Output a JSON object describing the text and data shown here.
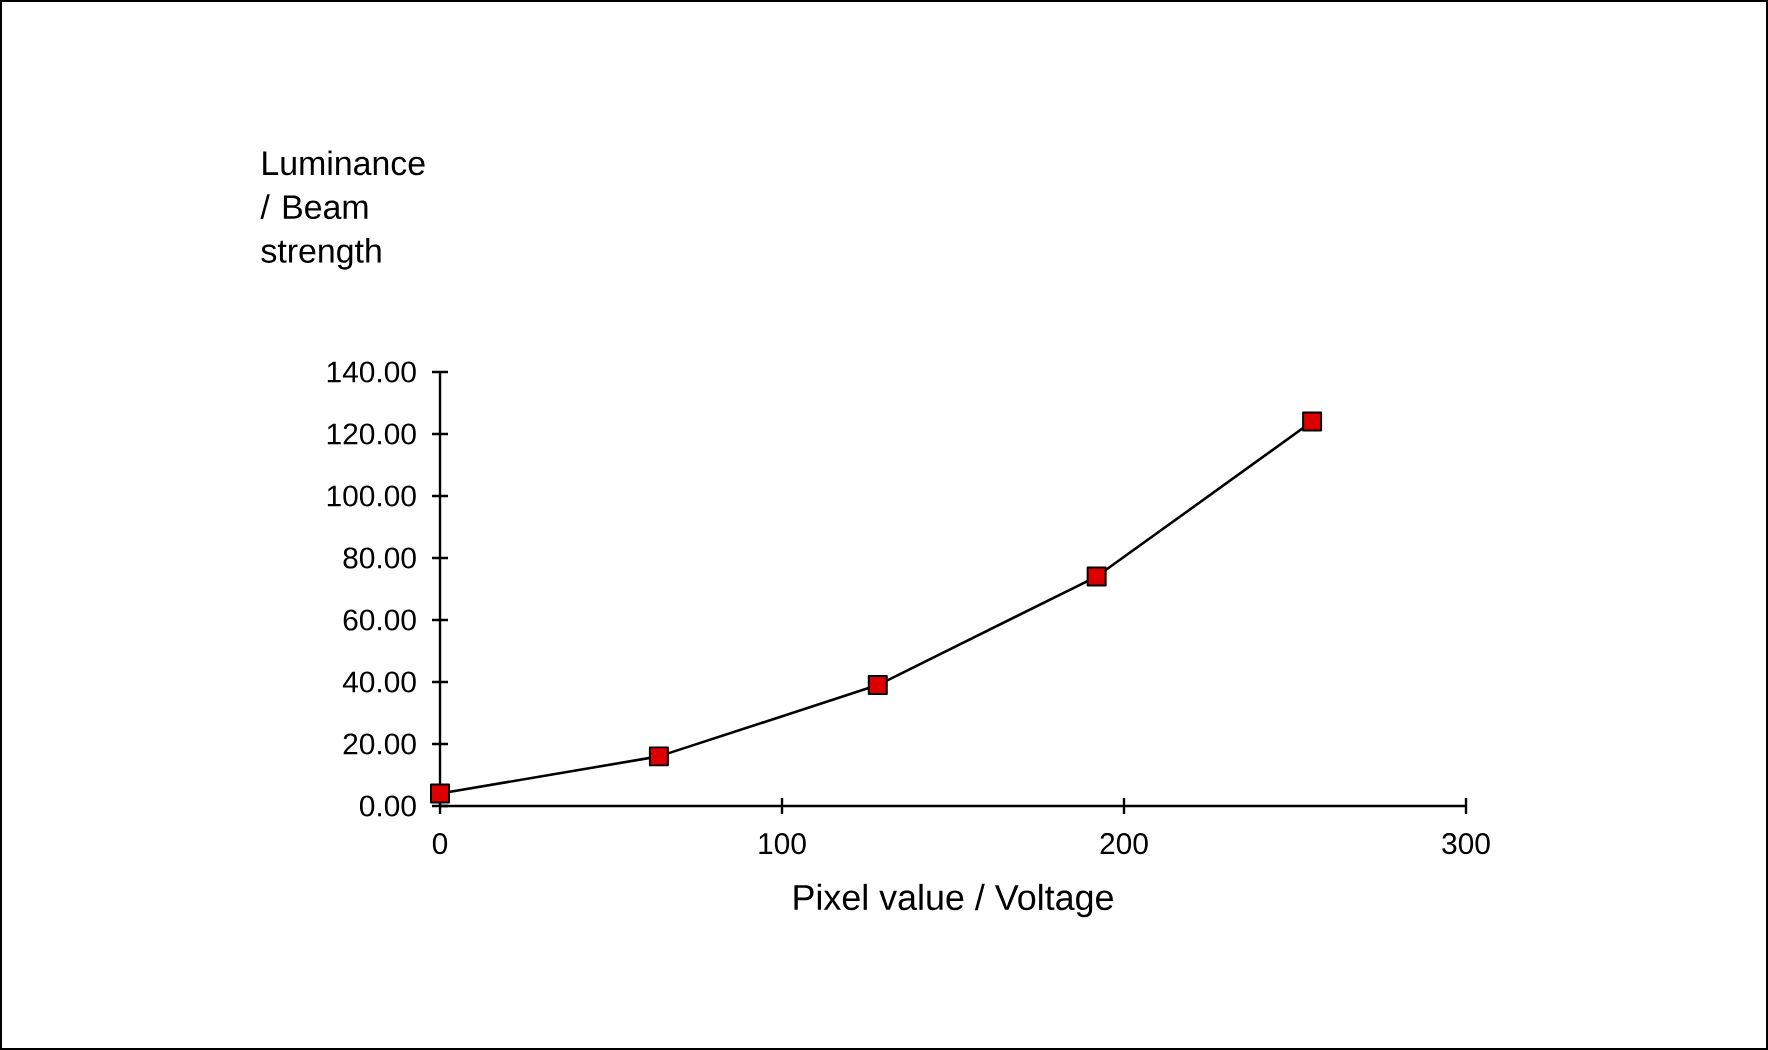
{
  "chart_data": {
    "type": "line",
    "xlabel": "Pixel value / Voltage",
    "ylabel": "Luminance / Beam strength",
    "x": [
      0,
      64,
      128,
      192,
      255
    ],
    "series": [
      {
        "color": "#dd0000",
        "values": [
          4,
          16,
          39,
          74,
          124
        ]
      }
    ],
    "xlim": [
      0,
      300
    ],
    "xticks": [
      0,
      100,
      200,
      300
    ],
    "ylim": [
      0,
      140
    ],
    "yticks": [
      {
        "value": 0,
        "label": "0.00"
      },
      {
        "value": 20,
        "label": "20.00"
      },
      {
        "value": 40,
        "label": "40.00"
      },
      {
        "value": 60,
        "label": "60.00"
      },
      {
        "value": 80,
        "label": "80.00"
      },
      {
        "value": 100,
        "label": "100.00"
      },
      {
        "value": 120,
        "label": "120.00"
      },
      {
        "value": 140,
        "label": "140.00"
      }
    ],
    "marker": "square",
    "line_style": "solid"
  }
}
